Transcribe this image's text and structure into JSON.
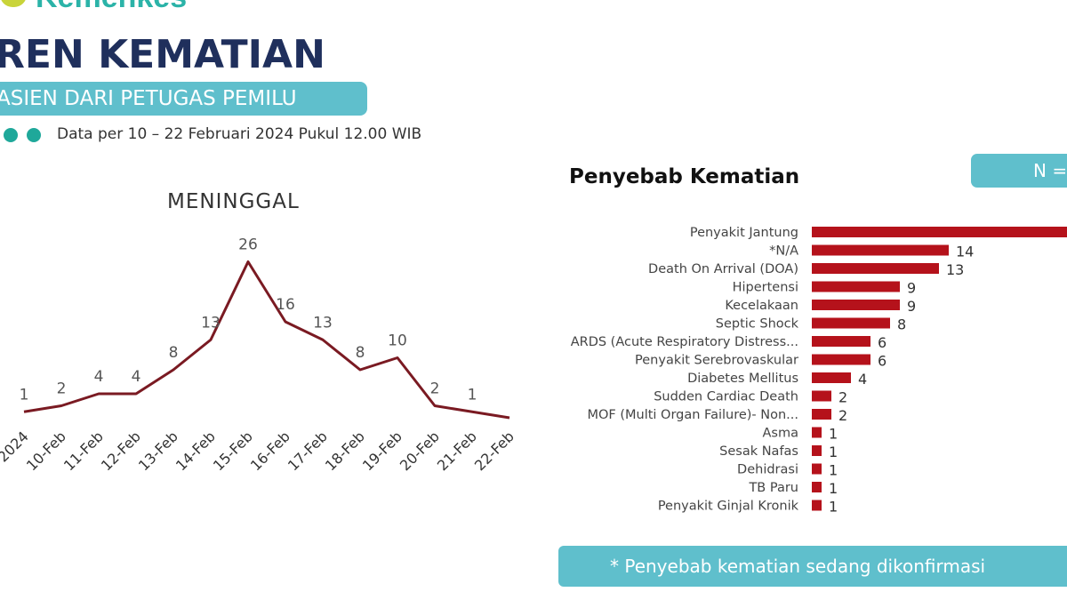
{
  "header": {
    "logo_text": "Kemenkes",
    "title": "REN KEMATIAN",
    "subtitle": "ASIEN DARI PETUGAS PEMILU",
    "data_note": "Data per 10 – 22 Februari 2024 Pukul 12.00  WIB"
  },
  "colors": {
    "navy": "#1f2f5c",
    "teal": "#5fbfcc",
    "dot": "#1fa89a",
    "line": "#7a1a22",
    "bar": "#b5121b"
  },
  "n_box": "N =",
  "footnote": "* Penyebab kematian sedang dikonfirmasi",
  "chart_data": [
    {
      "type": "line",
      "title": "MENINGGAL",
      "categories": [
        "2024",
        "10-Feb",
        "11-Feb",
        "12-Feb",
        "13-Feb",
        "14-Feb",
        "15-Feb",
        "16-Feb",
        "17-Feb",
        "18-Feb",
        "19-Feb",
        "20-Feb",
        "21-Feb",
        "22-Feb"
      ],
      "values": [
        1,
        2,
        4,
        4,
        8,
        13,
        26,
        16,
        13,
        8,
        10,
        2,
        1,
        0
      ],
      "labels": [
        "1",
        "2",
        "4",
        "4",
        "8",
        "13",
        "26",
        "16",
        "13",
        "8",
        "10",
        "2",
        "1",
        ""
      ],
      "grid": false
    },
    {
      "type": "bar",
      "orientation": "horizontal",
      "title": "Penyebab Kematian",
      "categories": [
        "Penyakit Jantung",
        "*N/A",
        "Death On Arrival (DOA)",
        "Hipertensi",
        "Kecelakaan",
        "Septic Shock",
        "ARDS (Acute Respiratory Distress...",
        "Penyakit Serebrovaskular",
        "Diabetes Mellitus",
        "Sudden Cardiac Death",
        "MOF (Multi Organ Failure)- Non...",
        "Asma",
        "Sesak Nafas",
        "Dehidrasi",
        "TB Paru",
        "Penyakit Ginjal Kronik"
      ],
      "values": [
        null,
        14,
        13,
        9,
        9,
        8,
        6,
        6,
        4,
        2,
        2,
        1,
        1,
        1,
        1,
        1
      ],
      "labels": [
        "",
        "14",
        "13",
        "9",
        "9",
        "8",
        "6",
        "6",
        "4",
        "2",
        "2",
        "1",
        "1",
        "1",
        "1",
        "1"
      ],
      "grid": false
    }
  ]
}
